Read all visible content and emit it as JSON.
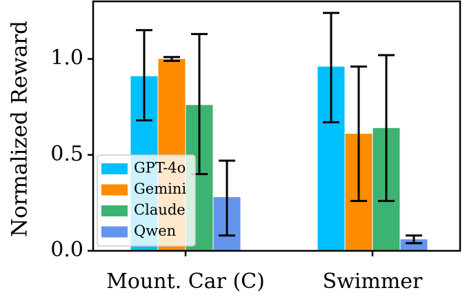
{
  "chart_data": {
    "type": "bar",
    "title": "",
    "xlabel": "",
    "ylabel": "Normalized Reward",
    "ylim": [
      0,
      1.3
    ],
    "yticks": [
      0.0,
      0.5,
      1.0
    ],
    "ytick_labels": [
      "0.0",
      "0.5",
      "1.0"
    ],
    "categories": [
      "Mount. Car (C)",
      "Swimmer"
    ],
    "series": [
      {
        "name": "GPT-4o",
        "color": "#00bfff",
        "values": [
          0.91,
          0.96
        ],
        "err_low": [
          0.68,
          0.67
        ],
        "err_high": [
          1.15,
          1.24
        ]
      },
      {
        "name": "Gemini",
        "color": "#ff8c00",
        "values": [
          1.0,
          0.61
        ],
        "err_low": [
          0.99,
          0.26
        ],
        "err_high": [
          1.01,
          0.96
        ]
      },
      {
        "name": "Claude",
        "color": "#3cb371",
        "values": [
          0.76,
          0.64
        ],
        "err_low": [
          0.4,
          0.26
        ],
        "err_high": [
          1.13,
          1.02
        ]
      },
      {
        "name": "Qwen",
        "color": "#6495ed",
        "values": [
          0.28,
          0.06
        ],
        "err_low": [
          0.08,
          0.04
        ],
        "err_high": [
          0.47,
          0.08
        ]
      }
    ],
    "legend": "lower-left",
    "grid": false,
    "error_bars": true
  }
}
